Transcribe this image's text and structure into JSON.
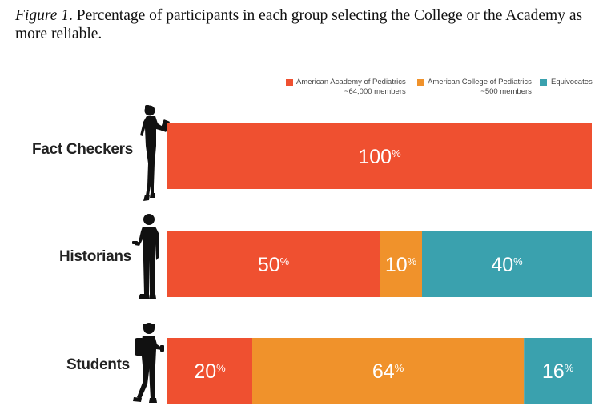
{
  "caption": {
    "figure_label": "Figure 1",
    "text": ". Percentage of participants in each group selecting the College or the Academy as more reliable."
  },
  "colors": {
    "academy": "#ef5030",
    "college": "#f0922b",
    "equivocates": "#3aa1ae"
  },
  "icons": {
    "fact_checkers": "standing-person-reading-icon",
    "historians": "standing-person-phone-icon",
    "students": "person-backpack-phone-icon"
  },
  "chart_data": {
    "type": "bar",
    "orientation": "horizontal",
    "stacked": true,
    "unit": "%",
    "categories": [
      "Fact Checkers",
      "Historians",
      "Students"
    ],
    "series": [
      {
        "name": "American Academy of Pediatrics",
        "subtitle": "~64,000 members",
        "values": [
          100,
          50,
          20
        ]
      },
      {
        "name": "American College of Pediatrics",
        "subtitle": "~500 members",
        "values": [
          0,
          10,
          64
        ]
      },
      {
        "name": "Equivocates",
        "subtitle": "",
        "values": [
          0,
          40,
          16
        ]
      }
    ],
    "xlim": [
      0,
      100
    ],
    "legend_position": "top-right",
    "grid": false
  }
}
